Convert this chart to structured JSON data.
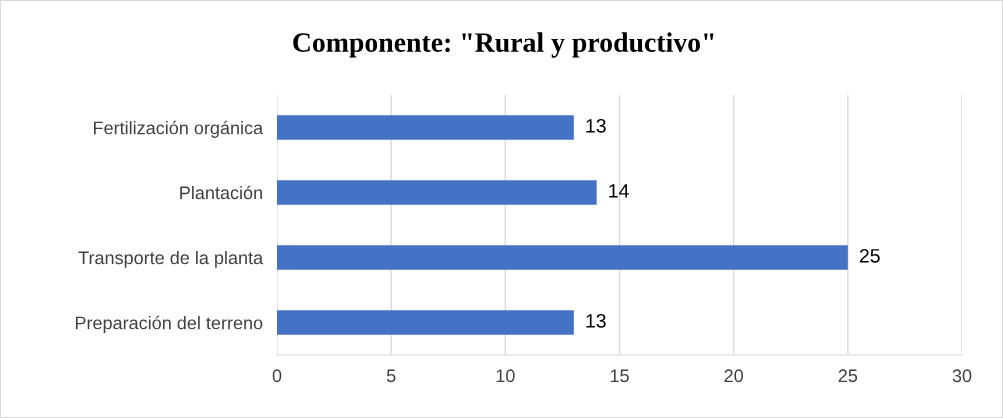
{
  "chart_data": {
    "type": "bar",
    "orientation": "horizontal",
    "title": "Componente: \"Rural y productivo\"",
    "categories": [
      "Fertilización orgánica",
      "Plantación",
      "Transporte de la planta",
      "Preparación del terreno"
    ],
    "values": [
      13,
      14,
      25,
      13
    ],
    "color": "#4472c4",
    "xlim": [
      0,
      30
    ],
    "xticks": [
      0,
      5,
      10,
      15,
      20,
      25,
      30
    ],
    "grid": "x",
    "data_labels": true
  }
}
